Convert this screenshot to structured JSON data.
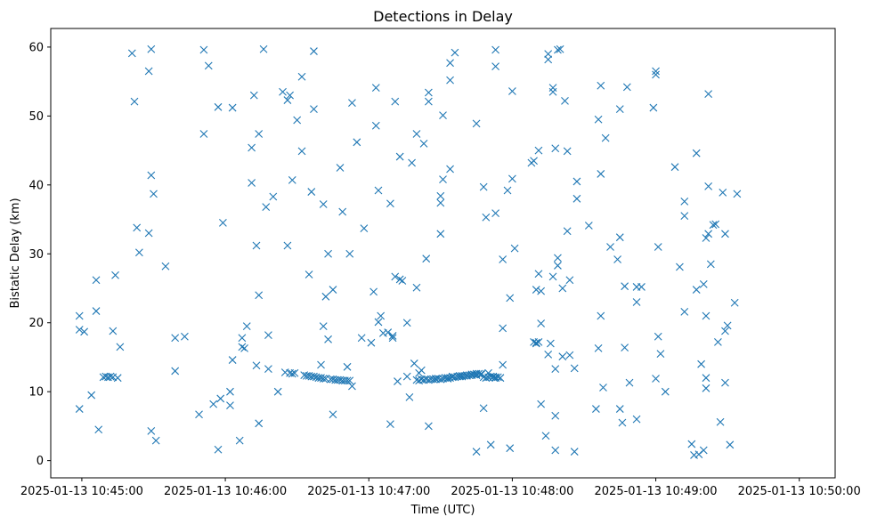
{
  "chart_data": {
    "type": "scatter",
    "title": "Detections in Delay",
    "xlabel": "Time (UTC)",
    "ylabel": "Bistatic Delay (km)",
    "x_unit": "seconds after 2025-01-13 10:45:00 UTC",
    "xlim": [
      -13,
      315
    ],
    "ylim": [
      -2.5,
      62.7
    ],
    "x_tick_values": [
      0,
      60,
      120,
      180,
      240,
      300
    ],
    "x_ticks": [
      "2025-01-13 10:45:00",
      "2025-01-13 10:46:00",
      "2025-01-13 10:47:00",
      "2025-01-13 10:48:00",
      "2025-01-13 10:49:00",
      "2025-01-13 10:50:00"
    ],
    "y_ticks": [
      0,
      10,
      20,
      30,
      40,
      50,
      60
    ],
    "marker": "x",
    "color": "#1f77b4",
    "grid": false,
    "legend": "none",
    "points": [
      [
        -1,
        7.5
      ],
      [
        -1,
        21
      ],
      [
        -1,
        19
      ],
      [
        1,
        18.7
      ],
      [
        4,
        9.5
      ],
      [
        6,
        26.2
      ],
      [
        6,
        21.7
      ],
      [
        7,
        4.5
      ],
      [
        9,
        12.1
      ],
      [
        10,
        12.2
      ],
      [
        11,
        12.1
      ],
      [
        12,
        12.2
      ],
      [
        13,
        12.1
      ],
      [
        13,
        18.8
      ],
      [
        14,
        26.9
      ],
      [
        15,
        12.0
      ],
      [
        16,
        16.5
      ],
      [
        21,
        59.1
      ],
      [
        22,
        52.1
      ],
      [
        23,
        33.8
      ],
      [
        24,
        30.2
      ],
      [
        28,
        56.5
      ],
      [
        28,
        33.0
      ],
      [
        29,
        59.7
      ],
      [
        29,
        41.4
      ],
      [
        29,
        4.3
      ],
      [
        30,
        38.7
      ],
      [
        31,
        2.9
      ],
      [
        35,
        28.2
      ],
      [
        39,
        13.0
      ],
      [
        39,
        17.8
      ],
      [
        43,
        18.0
      ],
      [
        49,
        6.7
      ],
      [
        51,
        59.6
      ],
      [
        51,
        47.4
      ],
      [
        53,
        57.3
      ],
      [
        55,
        8.2
      ],
      [
        57,
        1.6
      ],
      [
        57,
        51.3
      ],
      [
        58,
        9.0
      ],
      [
        59,
        34.5
      ],
      [
        62,
        10.0
      ],
      [
        62,
        8.0
      ],
      [
        63,
        14.6
      ],
      [
        63,
        51.2
      ],
      [
        66,
        2.9
      ],
      [
        67,
        17.8
      ],
      [
        67,
        16.5
      ],
      [
        68,
        16.3
      ],
      [
        69,
        19.5
      ],
      [
        71,
        45.4
      ],
      [
        71,
        40.3
      ],
      [
        72,
        53.0
      ],
      [
        73,
        31.2
      ],
      [
        73,
        13.8
      ],
      [
        74,
        24.0
      ],
      [
        74,
        47.4
      ],
      [
        74,
        5.4
      ],
      [
        76,
        59.7
      ],
      [
        77,
        36.8
      ],
      [
        78,
        13.3
      ],
      [
        78,
        18.2
      ],
      [
        80,
        38.3
      ],
      [
        82,
        10.0
      ],
      [
        84,
        53.5
      ],
      [
        85,
        12.8
      ],
      [
        86,
        31.2
      ],
      [
        86,
        52.3
      ],
      [
        87,
        53.0
      ],
      [
        87,
        12.7
      ],
      [
        88,
        40.7
      ],
      [
        88,
        12.6
      ],
      [
        89,
        12.7
      ],
      [
        90,
        49.4
      ],
      [
        92,
        44.9
      ],
      [
        92,
        55.7
      ],
      [
        93,
        12.4
      ],
      [
        94,
        12.3
      ],
      [
        95,
        27.0
      ],
      [
        95,
        12.3
      ],
      [
        96,
        39.0
      ],
      [
        96,
        12.2
      ],
      [
        97,
        59.4
      ],
      [
        97,
        51.0
      ],
      [
        97,
        12.2
      ],
      [
        98,
        12.1
      ],
      [
        99,
        12.0
      ],
      [
        100,
        13.9
      ],
      [
        100,
        12.0
      ],
      [
        101,
        37.2
      ],
      [
        101,
        19.5
      ],
      [
        101,
        11.9
      ],
      [
        102,
        23.8
      ],
      [
        102,
        11.9
      ],
      [
        103,
        30.0
      ],
      [
        103,
        17.6
      ],
      [
        104,
        11.8
      ],
      [
        105,
        11.8
      ],
      [
        105,
        24.8
      ],
      [
        105,
        6.7
      ],
      [
        106,
        11.7
      ],
      [
        107,
        11.7
      ],
      [
        108,
        42.5
      ],
      [
        108,
        11.7
      ],
      [
        109,
        36.1
      ],
      [
        109,
        11.6
      ],
      [
        110,
        11.6
      ],
      [
        111,
        11.6
      ],
      [
        111,
        13.6
      ],
      [
        112,
        11.6
      ],
      [
        112,
        30.0
      ],
      [
        113,
        51.9
      ],
      [
        113,
        10.8
      ],
      [
        115,
        46.2
      ],
      [
        117,
        17.8
      ],
      [
        118,
        33.7
      ],
      [
        121,
        17.1
      ],
      [
        122,
        24.5
      ],
      [
        123,
        48.6
      ],
      [
        123,
        54.1
      ],
      [
        124,
        39.2
      ],
      [
        124,
        20.1
      ],
      [
        125,
        21.0
      ],
      [
        126,
        18.5
      ],
      [
        128,
        18.6
      ],
      [
        129,
        5.3
      ],
      [
        129,
        37.3
      ],
      [
        130,
        18.1
      ],
      [
        130,
        17.8
      ],
      [
        131,
        52.1
      ],
      [
        131,
        26.7
      ],
      [
        132,
        11.5
      ],
      [
        133,
        26.3
      ],
      [
        133,
        44.1
      ],
      [
        134,
        26.1
      ],
      [
        136,
        20.0
      ],
      [
        136,
        12.2
      ],
      [
        137,
        9.2
      ],
      [
        138,
        43.2
      ],
      [
        139,
        14.1
      ],
      [
        140,
        25.1
      ],
      [
        140,
        47.4
      ],
      [
        140,
        11.7
      ],
      [
        141,
        11.6
      ],
      [
        141,
        12.7
      ],
      [
        142,
        11.8
      ],
      [
        142,
        13.1
      ],
      [
        143,
        11.7
      ],
      [
        143,
        46.0
      ],
      [
        144,
        29.3
      ],
      [
        144,
        11.8
      ],
      [
        145,
        5.0
      ],
      [
        145,
        11.7
      ],
      [
        145,
        53.4
      ],
      [
        145,
        52.1
      ],
      [
        146,
        11.8
      ],
      [
        147,
        11.8
      ],
      [
        148,
        11.9
      ],
      [
        148,
        11.8
      ],
      [
        149,
        11.9
      ],
      [
        150,
        11.8
      ],
      [
        150,
        32.9
      ],
      [
        150,
        38.4
      ],
      [
        150,
        37.4
      ],
      [
        151,
        11.9
      ],
      [
        151,
        40.8
      ],
      [
        151,
        50.1
      ],
      [
        152,
        12.0
      ],
      [
        153,
        11.9
      ],
      [
        153,
        12.0
      ],
      [
        154,
        12.0
      ],
      [
        154,
        42.3
      ],
      [
        154,
        55.2
      ],
      [
        154,
        57.7
      ],
      [
        155,
        12.1
      ],
      [
        155,
        12.2
      ],
      [
        156,
        12.1
      ],
      [
        156,
        59.2
      ],
      [
        157,
        12.2
      ],
      [
        158,
        12.2
      ],
      [
        158,
        12.3
      ],
      [
        159,
        12.3
      ],
      [
        159,
        12.2
      ],
      [
        160,
        12.3
      ],
      [
        161,
        12.4
      ],
      [
        161,
        12.3
      ],
      [
        162,
        12.4
      ],
      [
        163,
        12.5
      ],
      [
        163,
        12.4
      ],
      [
        164,
        12.5
      ],
      [
        165,
        48.9
      ],
      [
        165,
        12.6
      ],
      [
        165,
        12.4
      ],
      [
        165,
        1.3
      ],
      [
        166,
        12.6
      ],
      [
        167,
        12.6
      ],
      [
        167,
        12.5
      ],
      [
        168,
        39.7
      ],
      [
        168,
        12.1
      ],
      [
        168,
        7.6
      ],
      [
        169,
        12.0
      ],
      [
        169,
        35.3
      ],
      [
        170,
        12.7
      ],
      [
        170,
        12.1
      ],
      [
        171,
        12.2
      ],
      [
        171,
        2.3
      ],
      [
        172,
        12.2
      ],
      [
        172,
        12.1
      ],
      [
        173,
        57.2
      ],
      [
        173,
        59.6
      ],
      [
        173,
        35.9
      ],
      [
        173,
        12.1
      ],
      [
        173,
        12.0
      ],
      [
        174,
        12.1
      ],
      [
        175,
        12.0
      ],
      [
        176,
        29.2
      ],
      [
        176,
        13.9
      ],
      [
        176,
        19.2
      ],
      [
        178,
        39.2
      ],
      [
        179,
        23.6
      ],
      [
        179,
        1.8
      ],
      [
        180,
        53.6
      ],
      [
        180,
        40.9
      ],
      [
        181,
        30.8
      ],
      [
        188,
        43.2
      ],
      [
        189,
        43.5
      ],
      [
        189,
        17.2
      ],
      [
        190,
        17.1
      ],
      [
        190,
        24.8
      ],
      [
        190,
        17.0
      ],
      [
        191,
        17.2
      ],
      [
        191,
        45.0
      ],
      [
        191,
        27.1
      ],
      [
        192,
        8.2
      ],
      [
        192,
        24.6
      ],
      [
        192,
        19.9
      ],
      [
        194,
        3.6
      ],
      [
        195,
        59.0
      ],
      [
        195,
        58.2
      ],
      [
        195,
        15.4
      ],
      [
        196,
        17.0
      ],
      [
        197,
        54.1
      ],
      [
        197,
        53.5
      ],
      [
        197,
        26.7
      ],
      [
        198,
        1.5
      ],
      [
        198,
        6.5
      ],
      [
        198,
        45.3
      ],
      [
        198,
        13.3
      ],
      [
        199,
        29.4
      ],
      [
        199,
        28.3
      ],
      [
        199,
        59.6
      ],
      [
        200,
        59.7
      ],
      [
        201,
        15.1
      ],
      [
        201,
        25.0
      ],
      [
        202,
        52.2
      ],
      [
        203,
        33.3
      ],
      [
        203,
        44.9
      ],
      [
        204,
        26.2
      ],
      [
        204,
        15.3
      ],
      [
        206,
        13.4
      ],
      [
        206,
        1.3
      ],
      [
        207,
        40.5
      ],
      [
        207,
        38.0
      ],
      [
        212,
        34.1
      ],
      [
        215,
        7.5
      ],
      [
        216,
        49.5
      ],
      [
        216,
        16.3
      ],
      [
        217,
        41.6
      ],
      [
        217,
        21.0
      ],
      [
        217,
        54.4
      ],
      [
        218,
        10.6
      ],
      [
        219,
        46.8
      ],
      [
        221,
        31.0
      ],
      [
        224,
        29.2
      ],
      [
        225,
        51.0
      ],
      [
        225,
        32.4
      ],
      [
        225,
        7.5
      ],
      [
        226,
        5.5
      ],
      [
        227,
        25.3
      ],
      [
        227,
        16.4
      ],
      [
        228,
        54.2
      ],
      [
        229,
        11.3
      ],
      [
        232,
        25.2
      ],
      [
        232,
        23.0
      ],
      [
        232,
        6.0
      ],
      [
        234,
        25.2
      ],
      [
        239,
        51.2
      ],
      [
        240,
        56.5
      ],
      [
        240,
        56.0
      ],
      [
        240,
        11.9
      ],
      [
        241,
        31.0
      ],
      [
        241,
        18.0
      ],
      [
        242,
        15.5
      ],
      [
        244,
        10.0
      ],
      [
        248,
        42.6
      ],
      [
        250,
        28.1
      ],
      [
        252,
        37.6
      ],
      [
        252,
        35.5
      ],
      [
        252,
        21.6
      ],
      [
        255,
        2.4
      ],
      [
        256,
        0.8
      ],
      [
        257,
        24.8
      ],
      [
        257,
        44.6
      ],
      [
        258,
        0.9
      ],
      [
        259,
        14.0
      ],
      [
        260,
        1.5
      ],
      [
        260,
        25.6
      ],
      [
        261,
        21.0
      ],
      [
        261,
        10.5
      ],
      [
        261,
        32.3
      ],
      [
        261,
        12.0
      ],
      [
        262,
        32.9
      ],
      [
        262,
        39.8
      ],
      [
        262,
        53.2
      ],
      [
        263,
        28.5
      ],
      [
        264,
        34.2
      ],
      [
        265,
        34.3
      ],
      [
        266,
        17.2
      ],
      [
        267,
        5.6
      ],
      [
        268,
        38.9
      ],
      [
        269,
        11.3
      ],
      [
        269,
        32.9
      ],
      [
        269,
        18.8
      ],
      [
        270,
        19.6
      ],
      [
        271,
        2.3
      ],
      [
        273,
        22.9
      ],
      [
        274,
        38.7
      ]
    ]
  }
}
